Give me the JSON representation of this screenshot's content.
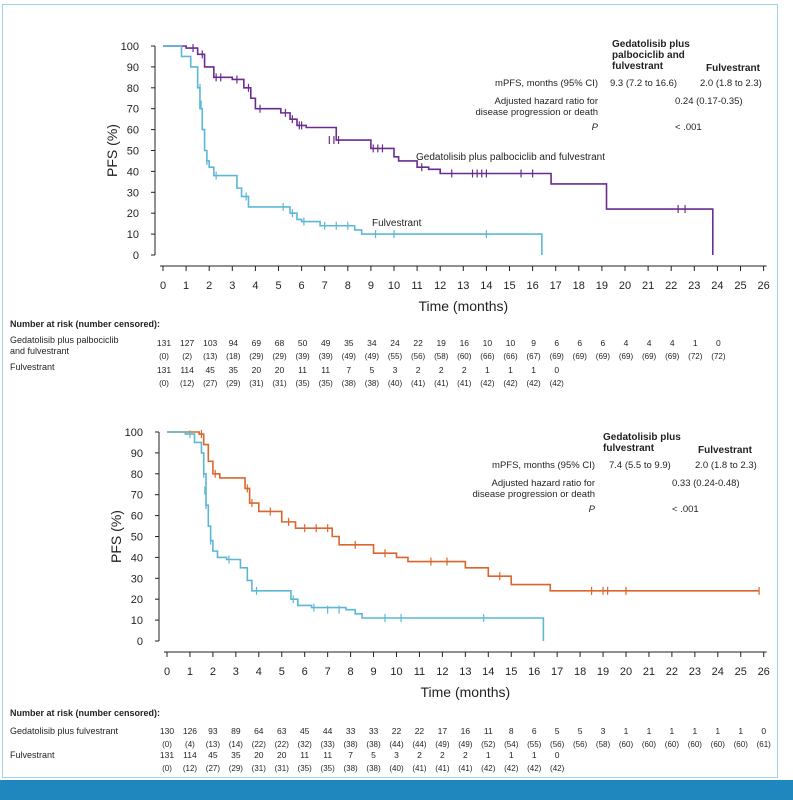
{
  "chart_data": [
    {
      "type": "line",
      "subtype": "kaplan-meier",
      "ylabel": "PFS (%)",
      "xlabel": "Time (months)",
      "xlim": [
        0,
        26
      ],
      "ylim": [
        0,
        100
      ],
      "xticks": [
        0,
        1,
        2,
        3,
        4,
        5,
        6,
        7,
        8,
        9,
        10,
        11,
        12,
        13,
        14,
        15,
        16,
        17,
        18,
        19,
        20,
        21,
        22,
        23,
        24,
        25,
        26
      ],
      "yticks": [
        0,
        10,
        20,
        30,
        40,
        50,
        60,
        70,
        80,
        90,
        100
      ],
      "series": [
        {
          "name": "Gedatolisib plus palbociclib and fulvestrant",
          "color": "#6b2c8f",
          "steps": [
            [
              0,
              100
            ],
            [
              1,
              99
            ],
            [
              1.5,
              96
            ],
            [
              1.8,
              90
            ],
            [
              2.2,
              85
            ],
            [
              3,
              84
            ],
            [
              3.5,
              80
            ],
            [
              3.8,
              75
            ],
            [
              4,
              70
            ],
            [
              5.1,
              68
            ],
            [
              5.5,
              65
            ],
            [
              5.8,
              62
            ],
            [
              6.2,
              61
            ],
            [
              7.5,
              55
            ],
            [
              9,
              51
            ],
            [
              10,
              47
            ],
            [
              10.2,
              45
            ],
            [
              11,
              42
            ],
            [
              11.5,
              41
            ],
            [
              12,
              39
            ],
            [
              16.8,
              34
            ],
            [
              19.2,
              22
            ],
            [
              23.8,
              0
            ]
          ],
          "censors": [
            [
              1.3,
              99
            ],
            [
              1.7,
              96
            ],
            [
              2.3,
              85
            ],
            [
              2.5,
              85
            ],
            [
              3.2,
              84
            ],
            [
              3.7,
              80
            ],
            [
              4.2,
              70
            ],
            [
              5.3,
              68
            ],
            [
              5.6,
              65
            ],
            [
              5.9,
              62
            ],
            [
              6,
              62
            ],
            [
              7.2,
              55
            ],
            [
              7.4,
              55
            ],
            [
              7.6,
              55
            ],
            [
              9.1,
              51
            ],
            [
              9.3,
              51
            ],
            [
              9.5,
              51
            ],
            [
              11.2,
              42
            ],
            [
              12.5,
              39
            ],
            [
              13.4,
              39
            ],
            [
              13.6,
              39
            ],
            [
              13.8,
              39
            ],
            [
              14,
              39
            ],
            [
              15.5,
              39
            ],
            [
              16,
              39
            ],
            [
              22.3,
              22
            ],
            [
              22.6,
              22
            ]
          ]
        },
        {
          "name": "Fulvestrant",
          "color": "#5bb7d5",
          "steps": [
            [
              0,
              100
            ],
            [
              0.8,
              95
            ],
            [
              1.2,
              90
            ],
            [
              1.5,
              80
            ],
            [
              1.6,
              70
            ],
            [
              1.7,
              60
            ],
            [
              1.8,
              50
            ],
            [
              1.9,
              45
            ],
            [
              2,
              42
            ],
            [
              2.2,
              38
            ],
            [
              3.2,
              32
            ],
            [
              3.4,
              28
            ],
            [
              3.7,
              23
            ],
            [
              5.5,
              20
            ],
            [
              5.8,
              17
            ],
            [
              6,
              16
            ],
            [
              6.8,
              14
            ],
            [
              8.3,
              12
            ],
            [
              8.6,
              10
            ],
            [
              16.4,
              0
            ]
          ],
          "censors": [
            [
              1.6,
              80
            ],
            [
              1.65,
              72
            ],
            [
              1.9,
              45
            ],
            [
              2.3,
              38
            ],
            [
              3.6,
              28
            ],
            [
              5.2,
              23
            ],
            [
              5.6,
              20
            ],
            [
              6.1,
              16
            ],
            [
              7,
              14
            ],
            [
              7.5,
              14
            ],
            [
              8.0,
              14
            ],
            [
              9.2,
              10
            ],
            [
              10,
              10
            ],
            [
              14,
              10
            ]
          ]
        }
      ],
      "curve_labels": [
        "Gedatolisib plus palbociclib and fulvestrant",
        "Fulvestrant"
      ],
      "table": {
        "header_arm": "Gedatolisib plus\npalbociclib and\nfulvestrant",
        "header_ctrl": "Fulvestrant",
        "rows": [
          {
            "label": "mPFS, months (95% CI)",
            "arm": "9.3 (7.2 to 16.6)",
            "ctrl": "2.0 (1.8 to 2.3)"
          },
          {
            "label": "Adjusted hazard ratio for\ndisease progression or death",
            "value": "0.24 (0.17-0.35)"
          },
          {
            "label": "P",
            "value": "< .001"
          }
        ]
      },
      "risk_title": "Number at risk (number censored):",
      "risk": [
        {
          "label": "Gedatolisib plus palbociclib\nand fulvestrant",
          "n": [
            "131",
            "127",
            "103",
            "94",
            "69",
            "68",
            "50",
            "49",
            "35",
            "34",
            "24",
            "22",
            "19",
            "16",
            "10",
            "10",
            "9",
            "6",
            "6",
            "6",
            "4",
            "4",
            "4",
            "1",
            "0"
          ],
          "c": [
            "(0)",
            "(2)",
            "(13)",
            "(18)",
            "(29)",
            "(29)",
            "(39)",
            "(39)",
            "(49)",
            "(49)",
            "(55)",
            "(56)",
            "(58)",
            "(60)",
            "(66)",
            "(66)",
            "(67)",
            "(69)",
            "(69)",
            "(69)",
            "(69)",
            "(69)",
            "(69)",
            "(72)",
            "(72)"
          ]
        },
        {
          "label": "Fulvestrant",
          "n": [
            "131",
            "114",
            "45",
            "35",
            "20",
            "20",
            "11",
            "11",
            "7",
            "5",
            "3",
            "2",
            "2",
            "2",
            "1",
            "1",
            "1",
            "0"
          ],
          "c": [
            "(0)",
            "(12)",
            "(27)",
            "(29)",
            "(31)",
            "(31)",
            "(35)",
            "(35)",
            "(38)",
            "(38)",
            "(40)",
            "(41)",
            "(41)",
            "(41)",
            "(42)",
            "(42)",
            "(42)",
            "(42)"
          ]
        }
      ]
    },
    {
      "type": "line",
      "subtype": "kaplan-meier",
      "ylabel": "PFS (%)",
      "xlabel": "Time (months)",
      "xlim": [
        0,
        26
      ],
      "ylim": [
        0,
        100
      ],
      "xticks": [
        0,
        1,
        2,
        3,
        4,
        5,
        6,
        7,
        8,
        9,
        10,
        11,
        12,
        13,
        14,
        15,
        16,
        17,
        18,
        19,
        20,
        21,
        22,
        23,
        24,
        25,
        26
      ],
      "yticks": [
        0,
        10,
        20,
        30,
        40,
        50,
        60,
        70,
        80,
        90,
        100
      ],
      "series": [
        {
          "name": "Gedatolisib plus fulvestrant",
          "color": "#d9662c",
          "steps": [
            [
              0,
              100
            ],
            [
              1.4,
              99
            ],
            [
              1.6,
              94
            ],
            [
              1.8,
              86
            ],
            [
              2,
              80
            ],
            [
              2.3,
              78
            ],
            [
              3.4,
              73
            ],
            [
              3.6,
              66
            ],
            [
              4,
              62
            ],
            [
              5,
              57
            ],
            [
              5.6,
              54
            ],
            [
              7.2,
              50
            ],
            [
              7.5,
              46
            ],
            [
              9,
              42
            ],
            [
              10,
              40
            ],
            [
              10.5,
              38
            ],
            [
              13,
              35
            ],
            [
              14,
              31
            ],
            [
              15,
              27
            ],
            [
              16.7,
              24
            ],
            [
              25.8,
              24
            ]
          ],
          "censors": [
            [
              1.5,
              99
            ],
            [
              2.1,
              80
            ],
            [
              3.5,
              73
            ],
            [
              3.7,
              66
            ],
            [
              4.5,
              62
            ],
            [
              5.3,
              57
            ],
            [
              6,
              54
            ],
            [
              6.5,
              54
            ],
            [
              7,
              54
            ],
            [
              8.2,
              46
            ],
            [
              9.5,
              42
            ],
            [
              11.5,
              38
            ],
            [
              12.2,
              38
            ],
            [
              14.5,
              31
            ],
            [
              18.5,
              24
            ],
            [
              19,
              24
            ],
            [
              19.2,
              24
            ],
            [
              20,
              24
            ],
            [
              25.8,
              24
            ]
          ]
        },
        {
          "name": "Fulvestrant",
          "color": "#5bb7d5",
          "steps": [
            [
              0,
              100
            ],
            [
              0.8,
              99
            ],
            [
              1.2,
              95
            ],
            [
              1.5,
              90
            ],
            [
              1.6,
              80
            ],
            [
              1.7,
              65
            ],
            [
              1.8,
              55
            ],
            [
              1.9,
              48
            ],
            [
              2,
              43
            ],
            [
              2.2,
              40
            ],
            [
              2.6,
              39
            ],
            [
              3.2,
              35
            ],
            [
              3.5,
              29
            ],
            [
              3.7,
              24
            ],
            [
              5.4,
              20
            ],
            [
              5.7,
              17
            ],
            [
              6.3,
              16
            ],
            [
              7.8,
              15
            ],
            [
              8.2,
              13
            ],
            [
              8.5,
              11
            ],
            [
              16.4,
              0
            ]
          ],
          "censors": [
            [
              1.0,
              99
            ],
            [
              1.6,
              80
            ],
            [
              1.65,
              72
            ],
            [
              1.7,
              65
            ],
            [
              1.9,
              48
            ],
            [
              2.7,
              39
            ],
            [
              3.9,
              24
            ],
            [
              5.5,
              20
            ],
            [
              6.4,
              16
            ],
            [
              7,
              15
            ],
            [
              7.5,
              15
            ],
            [
              9.5,
              11
            ],
            [
              10.2,
              11
            ],
            [
              13.8,
              11
            ]
          ]
        }
      ],
      "table": {
        "header_arm": "Gedatolisib plus\nfulvestrant",
        "header_ctrl": "Fulvestrant",
        "rows": [
          {
            "label": "mPFS, months (95% CI)",
            "arm": "7.4 (5.5 to 9.9)",
            "ctrl": "2.0 (1.8 to 2.3)"
          },
          {
            "label": "Adjusted hazard ratio for\ndisease progression or death",
            "value": "0.33 (0.24-0.48)"
          },
          {
            "label": "P",
            "value": "< .001"
          }
        ]
      },
      "risk_title": "Number at risk (number censored):",
      "risk": [
        {
          "label": "Gedatolisib plus fulvestrant",
          "n": [
            "130",
            "126",
            "93",
            "89",
            "64",
            "63",
            "45",
            "44",
            "33",
            "33",
            "22",
            "22",
            "17",
            "16",
            "11",
            "8",
            "6",
            "5",
            "5",
            "3",
            "1",
            "1",
            "1",
            "1",
            "1",
            "1",
            "0"
          ],
          "c": [
            "(0)",
            "(4)",
            "(13)",
            "(14)",
            "(22)",
            "(22)",
            "(32)",
            "(33)",
            "(38)",
            "(38)",
            "(44)",
            "(44)",
            "(49)",
            "(49)",
            "(52)",
            "(54)",
            "(55)",
            "(56)",
            "(56)",
            "(58)",
            "(60)",
            "(60)",
            "(60)",
            "(60)",
            "(60)",
            "(60)",
            "(61)"
          ]
        },
        {
          "label": "Fulvestrant",
          "n": [
            "131",
            "114",
            "45",
            "35",
            "20",
            "20",
            "11",
            "11",
            "7",
            "5",
            "3",
            "2",
            "2",
            "2",
            "1",
            "1",
            "1",
            "0"
          ],
          "c": [
            "(0)",
            "(12)",
            "(27)",
            "(29)",
            "(31)",
            "(31)",
            "(35)",
            "(35)",
            "(38)",
            "(38)",
            "(40)",
            "(41)",
            "(41)",
            "(41)",
            "(42)",
            "(42)",
            "(42)",
            "(42)"
          ]
        }
      ]
    }
  ]
}
